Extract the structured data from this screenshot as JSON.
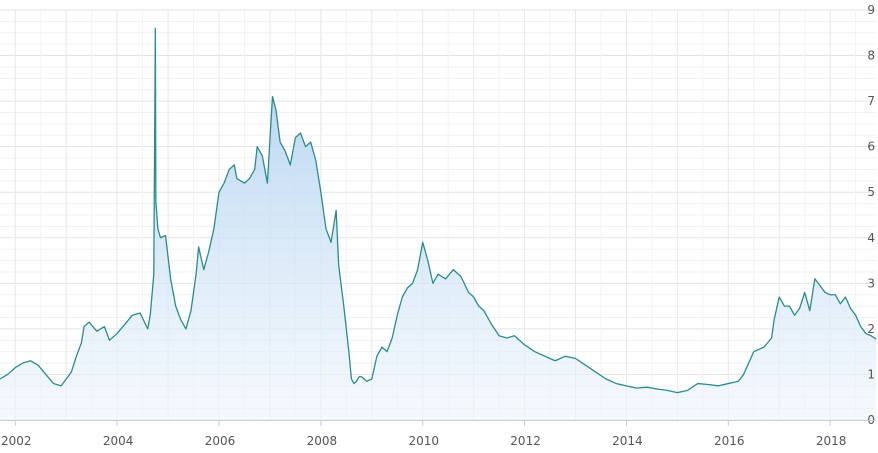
{
  "chart_data": {
    "type": "area",
    "title": "",
    "xlabel": "",
    "ylabel": "",
    "xlim": [
      2001.7,
      2018.9
    ],
    "ylim": [
      0,
      9
    ],
    "x_ticks": [
      {
        "value": 2002,
        "label": "2002"
      },
      {
        "value": 2004,
        "label": "2004"
      },
      {
        "value": 2006,
        "label": "2006"
      },
      {
        "value": 2008,
        "label": "2008"
      },
      {
        "value": 2010,
        "label": "2010"
      },
      {
        "value": 2012,
        "label": "2012"
      },
      {
        "value": 2014,
        "label": "2014"
      },
      {
        "value": 2016,
        "label": "2016"
      },
      {
        "value": 2018,
        "label": "2018"
      }
    ],
    "y_ticks": [
      {
        "value": 0,
        "label": "0"
      },
      {
        "value": 1,
        "label": "1"
      },
      {
        "value": 2,
        "label": "2"
      },
      {
        "value": 3,
        "label": "3"
      },
      {
        "value": 4,
        "label": "4"
      },
      {
        "value": 5,
        "label": "5"
      },
      {
        "value": 6,
        "label": "6"
      },
      {
        "value": 7,
        "label": "7"
      },
      {
        "value": 8,
        "label": "8"
      },
      {
        "value": 9,
        "label": "9"
      }
    ],
    "y_axis_position": "right",
    "grid": true,
    "line_color": "#2a8c8c",
    "fill_top_color": "#a8cdee",
    "fill_bottom_color": "#eef5fc",
    "series": [
      {
        "x": [
          2001.7,
          2001.85,
          2002.0,
          2002.15,
          2002.3,
          2002.45,
          2002.6,
          2002.75,
          2002.9,
          2003.0,
          2003.1,
          2003.2,
          2003.3,
          2003.35,
          2003.45,
          2003.6,
          2003.75,
          2003.85,
          2004.0,
          2004.15,
          2004.3,
          2004.45,
          2004.6,
          2004.65,
          2004.72,
          2004.75,
          2004.76,
          2004.8,
          2004.85,
          2004.95,
          2005.05,
          2005.15,
          2005.25,
          2005.35,
          2005.45,
          2005.55,
          2005.6,
          2005.7,
          2005.8,
          2005.9,
          2006.0,
          2006.1,
          2006.2,
          2006.3,
          2006.35,
          2006.5,
          2006.6,
          2006.7,
          2006.75,
          2006.85,
          2006.95,
          2007.05,
          2007.12,
          2007.2,
          2007.3,
          2007.4,
          2007.5,
          2007.6,
          2007.7,
          2007.8,
          2007.9,
          2008.0,
          2008.1,
          2008.2,
          2008.3,
          2008.35,
          2008.45,
          2008.55,
          2008.6,
          2008.65,
          2008.7,
          2008.75,
          2008.8,
          2008.9,
          2009.0,
          2009.1,
          2009.2,
          2009.3,
          2009.4,
          2009.5,
          2009.6,
          2009.7,
          2009.8,
          2009.9,
          2010.0,
          2010.1,
          2010.2,
          2010.3,
          2010.45,
          2010.6,
          2010.75,
          2010.9,
          2011.0,
          2011.1,
          2011.2,
          2011.35,
          2011.5,
          2011.65,
          2011.8,
          2012.0,
          2012.2,
          2012.4,
          2012.6,
          2012.8,
          2013.0,
          2013.2,
          2013.4,
          2013.6,
          2013.8,
          2014.0,
          2014.2,
          2014.4,
          2014.6,
          2014.8,
          2015.0,
          2015.2,
          2015.4,
          2015.6,
          2015.8,
          2016.0,
          2016.2,
          2016.3,
          2016.5,
          2016.7,
          2016.85,
          2016.9,
          2017.0,
          2017.1,
          2017.2,
          2017.3,
          2017.4,
          2017.5,
          2017.6,
          2017.7,
          2017.8,
          2017.9,
          2018.0,
          2018.1,
          2018.2,
          2018.3,
          2018.4,
          2018.5,
          2018.6,
          2018.7,
          2018.8,
          2018.9
        ],
        "y": [
          0.9,
          1.0,
          1.15,
          1.25,
          1.3,
          1.2,
          1.0,
          0.8,
          0.75,
          0.9,
          1.05,
          1.4,
          1.7,
          2.05,
          2.15,
          1.95,
          2.05,
          1.75,
          1.9,
          2.1,
          2.3,
          2.35,
          2.0,
          2.3,
          3.2,
          8.6,
          4.8,
          4.2,
          4.0,
          4.05,
          3.1,
          2.5,
          2.2,
          2.0,
          2.4,
          3.2,
          3.8,
          3.3,
          3.7,
          4.2,
          5.0,
          5.2,
          5.5,
          5.6,
          5.3,
          5.2,
          5.3,
          5.5,
          6.0,
          5.8,
          5.2,
          7.1,
          6.8,
          6.1,
          5.9,
          5.6,
          6.2,
          6.3,
          6.0,
          6.1,
          5.7,
          5.0,
          4.2,
          3.9,
          4.6,
          3.4,
          2.5,
          1.5,
          0.9,
          0.8,
          0.85,
          0.95,
          0.95,
          0.85,
          0.9,
          1.4,
          1.6,
          1.5,
          1.8,
          2.3,
          2.7,
          2.9,
          3.0,
          3.3,
          3.9,
          3.5,
          3.0,
          3.2,
          3.1,
          3.3,
          3.15,
          2.8,
          2.7,
          2.5,
          2.4,
          2.1,
          1.85,
          1.8,
          1.85,
          1.65,
          1.5,
          1.4,
          1.3,
          1.4,
          1.35,
          1.2,
          1.05,
          0.9,
          0.8,
          0.75,
          0.7,
          0.72,
          0.68,
          0.65,
          0.6,
          0.65,
          0.8,
          0.78,
          0.75,
          0.8,
          0.85,
          1.0,
          1.5,
          1.6,
          1.8,
          2.2,
          2.7,
          2.5,
          2.5,
          2.3,
          2.45,
          2.8,
          2.4,
          3.1,
          2.95,
          2.8,
          2.75,
          2.75,
          2.55,
          2.7,
          2.45,
          2.3,
          2.05,
          1.9,
          1.85,
          1.78
        ]
      }
    ]
  }
}
